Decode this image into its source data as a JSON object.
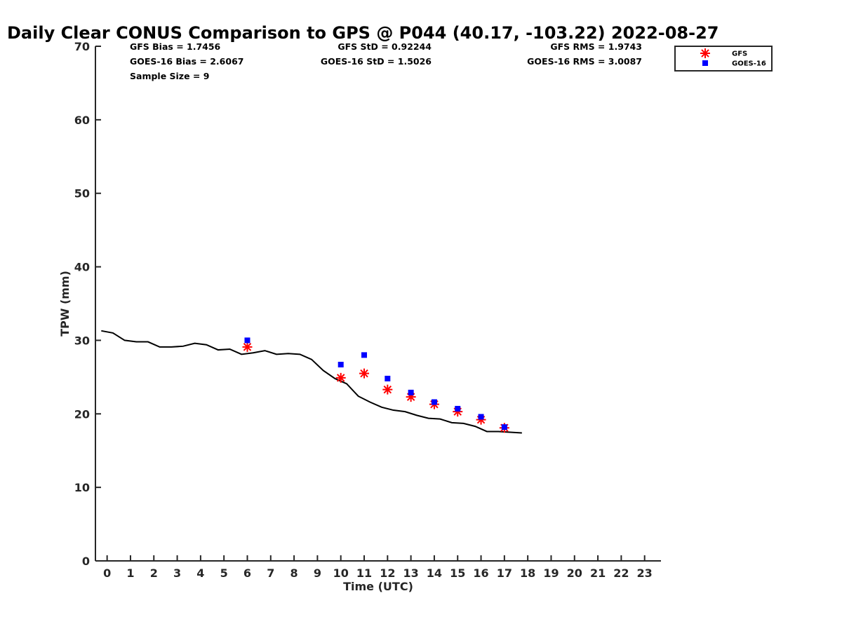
{
  "chart_data": {
    "type": "scatter",
    "title": "Daily Clear CONUS Comparison to GPS @ P044 (40.17, -103.22) 2022-08-27",
    "xlabel": "Time (UTC)",
    "ylabel": "TPW (mm)",
    "xlim": [
      -0.5,
      23.7
    ],
    "ylim": [
      0,
      70
    ],
    "xticks": [
      0,
      1,
      2,
      3,
      4,
      5,
      6,
      7,
      8,
      9,
      10,
      11,
      12,
      13,
      14,
      15,
      16,
      17,
      18,
      19,
      20,
      21,
      22,
      23
    ],
    "yticks": [
      0,
      10,
      20,
      30,
      40,
      50,
      60,
      70
    ],
    "grid": false,
    "legend_placement": "top-right",
    "stats": [
      [
        "GFS Bias = 1.7456",
        "GFS StD = 0.92244",
        "GFS RMS = 1.9743"
      ],
      [
        "GOES-16 Bias = 2.6067",
        "GOES-16 StD = 1.5026",
        "GOES-16 RMS = 3.0087"
      ],
      [
        "Sample Size = 9"
      ]
    ],
    "series": [
      {
        "style": "line",
        "color": "#000000",
        "x": [
          -0.25,
          0.25,
          0.75,
          1.25,
          1.75,
          2.25,
          2.75,
          3.25,
          3.75,
          4.25,
          4.75,
          5.25,
          5.75,
          6.25,
          6.75,
          7.25,
          7.75,
          8.25,
          8.75,
          9.25,
          9.75,
          10.25,
          10.75,
          11.25,
          11.75,
          12.25,
          12.75,
          13.25,
          13.75,
          14.25,
          14.75,
          15.25,
          15.75,
          16.25,
          16.75,
          17.25,
          17.75
        ],
        "values": [
          31.3,
          31.0,
          30.0,
          29.8,
          29.8,
          29.1,
          29.1,
          29.2,
          29.6,
          29.4,
          28.7,
          28.8,
          28.1,
          28.3,
          28.6,
          28.1,
          28.2,
          28.1,
          27.4,
          25.9,
          24.8,
          24.1,
          22.4,
          21.6,
          20.9,
          20.5,
          20.3,
          19.8,
          19.4,
          19.3,
          18.8,
          18.7,
          18.3,
          17.6,
          17.6,
          17.5,
          17.4
        ]
      },
      {
        "name": "GFS",
        "style": "asterisk",
        "color": "#ff0000",
        "x": [
          6,
          10,
          11,
          12,
          13,
          14,
          15,
          16,
          17
        ],
        "values": [
          29.1,
          24.9,
          25.5,
          23.3,
          22.3,
          21.3,
          20.3,
          19.2,
          18.1
        ]
      },
      {
        "name": "GOES-16",
        "style": "square",
        "color": "#0000ff",
        "x": [
          6,
          10,
          11,
          12,
          13,
          14,
          15,
          16,
          17
        ],
        "values": [
          30.0,
          26.7,
          28.0,
          24.8,
          22.9,
          21.6,
          20.7,
          19.6,
          18.2
        ]
      }
    ]
  }
}
